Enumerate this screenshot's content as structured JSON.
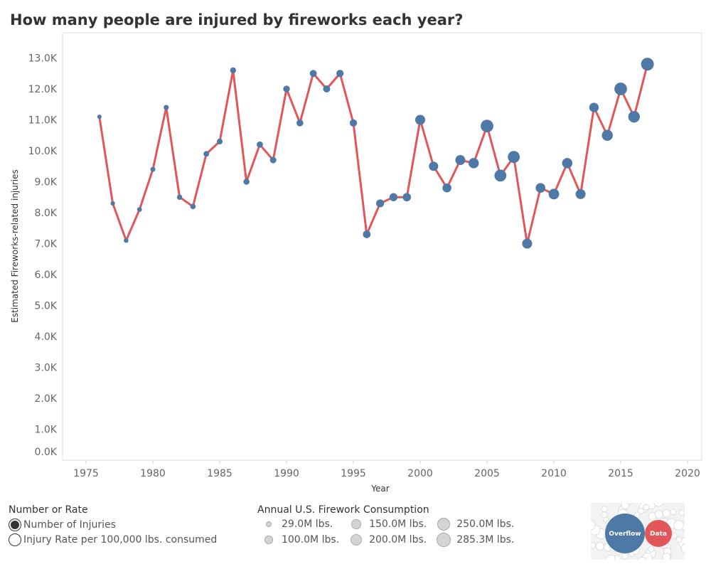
{
  "title": "How many people are injured by fireworks each year?",
  "chart_data": {
    "type": "line",
    "title": "How many people are injured by fireworks each year?",
    "xlabel": "Year",
    "ylabel": "Estimated Fireworks-related injuries",
    "xlim": [
      1972,
      2021
    ],
    "ylim": [
      0,
      13.8
    ],
    "x_ticks": [
      "1975",
      "1980",
      "1985",
      "1990",
      "1995",
      "2000",
      "2005",
      "2010",
      "2015",
      "2020"
    ],
    "y_ticks": [
      "0.0K",
      "1.0K",
      "2.0K",
      "3.0K",
      "4.0K",
      "5.0K",
      "6.0K",
      "7.0K",
      "8.0K",
      "9.0K",
      "10.0K",
      "11.0K",
      "12.0K",
      "13.0K"
    ],
    "y_unit": "thousands of injuries",
    "grid": false,
    "line_color": "#e15759",
    "marker_color": "#4e79a7",
    "marker_size_encodes": "Annual U.S. Firework Consumption (M lbs.)",
    "x": [
      1976,
      1977,
      1978,
      1979,
      1980,
      1981,
      1982,
      1983,
      1984,
      1985,
      1986,
      1987,
      1988,
      1989,
      1990,
      1991,
      1992,
      1993,
      1994,
      1995,
      1996,
      1997,
      1998,
      1999,
      2000,
      2001,
      2002,
      2003,
      2004,
      2005,
      2006,
      2007,
      2008,
      2009,
      2010,
      2011,
      2012,
      2013,
      2014,
      2015,
      2016,
      2017
    ],
    "y": [
      11.1,
      8.3,
      7.1,
      8.1,
      9.4,
      11.4,
      8.5,
      8.2,
      9.9,
      10.3,
      12.6,
      9.0,
      10.2,
      9.7,
      12.0,
      10.9,
      12.5,
      12.0,
      12.5,
      10.9,
      7.3,
      8.3,
      8.5,
      8.5,
      11.0,
      9.5,
      8.8,
      9.7,
      9.6,
      10.8,
      9.2,
      9.8,
      7.0,
      8.8,
      8.6,
      9.6,
      8.6,
      11.4,
      10.5,
      12.0,
      11.1,
      12.8
    ],
    "consumption": [
      29,
      35,
      40,
      45,
      50,
      55,
      60,
      65,
      70,
      75,
      80,
      85,
      90,
      95,
      100,
      105,
      110,
      115,
      120,
      120,
      130,
      140,
      145,
      150,
      200,
      180,
      170,
      200,
      210,
      280,
      260,
      260,
      200,
      190,
      220,
      210,
      200,
      185,
      230,
      280,
      250,
      285.3
    ]
  },
  "legend_mode": {
    "title": "Number or Rate",
    "options": [
      {
        "label": "Number of Injuries",
        "selected": true
      },
      {
        "label": "Injury Rate per 100,000 lbs. consumed",
        "selected": false
      }
    ]
  },
  "legend_size": {
    "title": "Annual U.S. Firework Consumption",
    "items": [
      {
        "label": "29.0M lbs.",
        "value": 29
      },
      {
        "label": "150.0M lbs.",
        "value": 150
      },
      {
        "label": "250.0M lbs.",
        "value": 250
      },
      {
        "label": "100.0M lbs.",
        "value": 100
      },
      {
        "label": "200.0M lbs.",
        "value": 200
      },
      {
        "label": "285.3M lbs.",
        "value": 285.3
      }
    ]
  },
  "logo": {
    "word1": "Overflow",
    "word2": "Data"
  }
}
